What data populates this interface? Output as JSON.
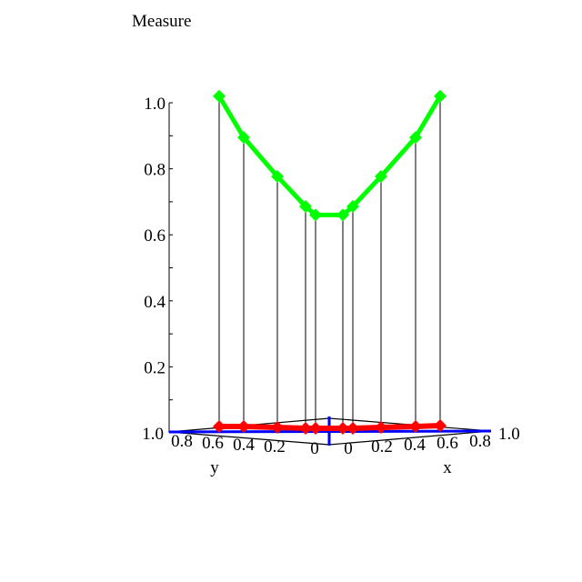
{
  "chart_data": {
    "type": "line",
    "projection": "3d",
    "title": "Measure",
    "zlabel": "Measure",
    "xlabel": "x",
    "ylabel": "y",
    "z_ticks": [
      "0.2",
      "0.4",
      "0.6",
      "0.8",
      "1.0"
    ],
    "x_ticks": [
      "0",
      "0.2",
      "0.4",
      "0.6",
      "0.8",
      "1.0"
    ],
    "y_ticks": [
      "0",
      "0.2",
      "0.4",
      "0.6",
      "0.8",
      "1.0"
    ],
    "zlim": [
      0,
      1.0
    ],
    "series": [
      {
        "color": "#00ff00",
        "marker": "diamond",
        "values": [
          1.02,
          0.895,
          0.777,
          0.686,
          0.66,
          0.66,
          0.686,
          0.777,
          0.895,
          1.02
        ]
      },
      {
        "color": "#ff0000",
        "marker": "diamond",
        "values": [
          0,
          0,
          0,
          0,
          0,
          0,
          0,
          0,
          0,
          0
        ]
      }
    ],
    "base_axes_color": "#0000ff"
  }
}
